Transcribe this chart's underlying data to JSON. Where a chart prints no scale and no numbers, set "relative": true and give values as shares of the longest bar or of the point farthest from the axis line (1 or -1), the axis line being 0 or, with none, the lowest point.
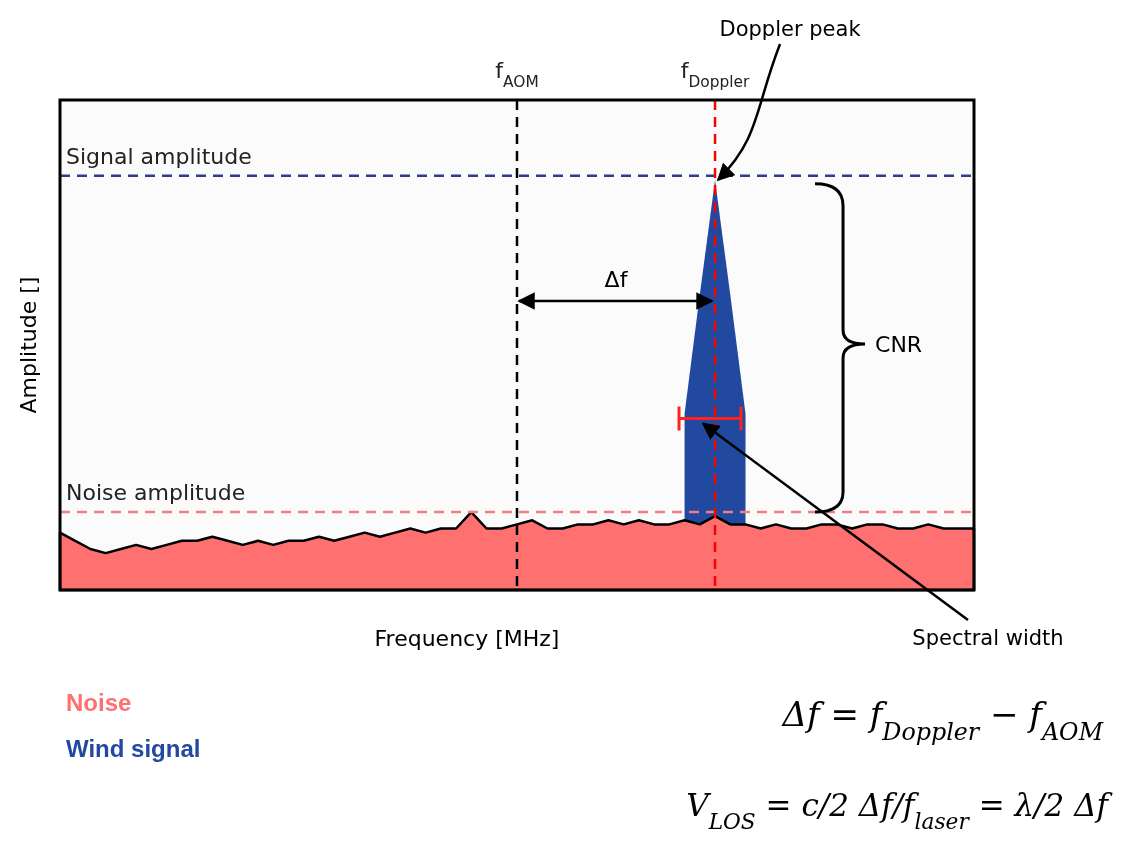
{
  "chart_data": {
    "type": "area",
    "relative": true,
    "xlabel": "Frequency [MHz]",
    "ylabel": "Amplitude []",
    "categories": [
      null,
      null,
      null,
      null,
      null,
      null,
      null,
      null,
      null,
      null,
      null,
      null,
      null,
      null,
      null,
      null,
      null,
      null,
      null,
      null,
      null,
      null,
      null,
      null,
      null,
      null,
      null,
      null,
      null,
      null,
      "f$_{AOM}$",
      null,
      null,
      null,
      null,
      null,
      null,
      null,
      null,
      null,
      null,
      null,
      null,
      "f$_{Doppler}$",
      null,
      null,
      null,
      null,
      null,
      null,
      null,
      null,
      null,
      null,
      null,
      null,
      null,
      null,
      null,
      null,
      null
    ],
    "series": [
      {
        "name": "Noise",
        "color": "#ff7070",
        "values": [
          0.14,
          0.12,
          0.1,
          0.09,
          0.1,
          0.11,
          0.1,
          0.11,
          0.12,
          0.12,
          0.13,
          0.12,
          0.11,
          0.12,
          0.11,
          0.12,
          0.12,
          0.13,
          0.12,
          0.13,
          0.14,
          0.13,
          0.14,
          0.15,
          0.14,
          0.15,
          0.15,
          0.19,
          0.15,
          0.15,
          0.16,
          0.17,
          0.15,
          0.15,
          0.16,
          0.16,
          0.17,
          0.16,
          0.17,
          0.16,
          0.16,
          0.17,
          0.16,
          0.18,
          0.16,
          0.16,
          0.15,
          0.16,
          0.15,
          0.15,
          0.16,
          0.16,
          0.15,
          0.16,
          0.16,
          0.15,
          0.15,
          0.16,
          0.15,
          0.15,
          0.15
        ]
      },
      {
        "name": "Wind signal",
        "color": "#2149a0",
        "values": [
          null,
          null,
          null,
          null,
          null,
          null,
          null,
          null,
          null,
          null,
          null,
          null,
          null,
          null,
          null,
          null,
          null,
          null,
          null,
          null,
          null,
          null,
          null,
          null,
          null,
          null,
          null,
          null,
          null,
          null,
          null,
          null,
          null,
          null,
          null,
          null,
          null,
          null,
          null,
          null,
          null,
          0.43,
          0.72,
          1,
          0.72,
          0.43,
          null,
          null,
          null,
          null,
          null,
          null,
          null,
          null,
          null,
          null,
          null,
          null,
          null,
          null,
          null
        ]
      }
    ],
    "ref_lines": [
      {
        "axis": "y",
        "value": 1.01,
        "label": "Signal amplitude",
        "color": "#2a3d8f",
        "line_style": "dashed"
      },
      {
        "axis": "y",
        "value": 0.19,
        "label": "Noise amplitude",
        "color": "#f08080",
        "line_style": "dashed"
      },
      {
        "axis": "x",
        "value": "f$_{AOM}$",
        "color": "#000000",
        "line_style": "dashed"
      },
      {
        "axis": "x",
        "value": "f$_{Doppler}$",
        "color": "#ff0000",
        "line_style": "dashed"
      }
    ],
    "annotations": [
      "Doppler peak",
      "Δf",
      "CNR",
      "Spectral width",
      "Δf = f$_{Doppler}$ − f$_{AOM}$",
      "V$_{LOS}$ = c/2 Δf/f$_{laser}$ = λ/2 Δf"
    ]
  }
}
